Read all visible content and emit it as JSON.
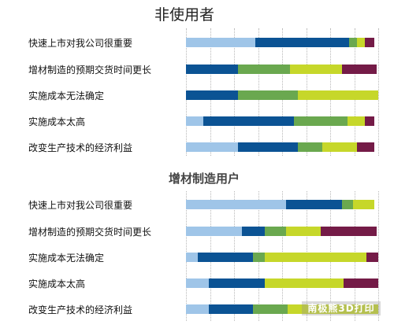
{
  "chart_data": [
    {
      "type": "bar",
      "orientation": "horizontal",
      "stacked": true,
      "title": "非使用者",
      "categories": [
        "快速上市对我公司很重要",
        "增材制造的预期交货时间更长",
        "实施成本无法确定",
        "实施成本太高",
        "改变生产技术的经济利益"
      ],
      "series": [
        {
          "color": "#9fc5e8",
          "values": [
            0.36,
            0,
            0,
            0.09,
            0.27
          ]
        },
        {
          "color": "#0b5394",
          "values": [
            0.49,
            0.27,
            0.27,
            0.47,
            0.31
          ]
        },
        {
          "color": "#6aa84f",
          "values": [
            0.04,
            0.27,
            0.31,
            0.28,
            0.13
          ]
        },
        {
          "color": "#c6d72a",
          "values": [
            0.04,
            0.27,
            0.42,
            0.09,
            0.18
          ]
        },
        {
          "color": "#741b47",
          "values": [
            0.05,
            0.18,
            0,
            0.05,
            0.09
          ]
        }
      ],
      "grid": true
    },
    {
      "type": "bar",
      "orientation": "horizontal",
      "stacked": true,
      "title": "增材制造用户",
      "categories": [
        "快速上市对我公司很重要",
        "增材制造的预期交货时间更长",
        "实施成本无法确定",
        "实施成本太高",
        "改变生产技术的经济利益"
      ],
      "series": [
        {
          "color": "#9fc5e8",
          "values": [
            0.52,
            0.29,
            0.06,
            0.12,
            0.12
          ]
        },
        {
          "color": "#0b5394",
          "values": [
            0.29,
            0.12,
            0.29,
            0.29,
            0.23
          ]
        },
        {
          "color": "#6aa84f",
          "values": [
            0.06,
            0.11,
            0.06,
            0,
            0.18
          ]
        },
        {
          "color": "#c6d72a",
          "values": [
            0.11,
            0.18,
            0.53,
            0.41,
            0.47
          ]
        },
        {
          "color": "#741b47",
          "values": [
            0,
            0.29,
            0.06,
            0.18,
            0
          ]
        }
      ],
      "grid": true
    }
  ],
  "watermark": "南极熊3D打印"
}
